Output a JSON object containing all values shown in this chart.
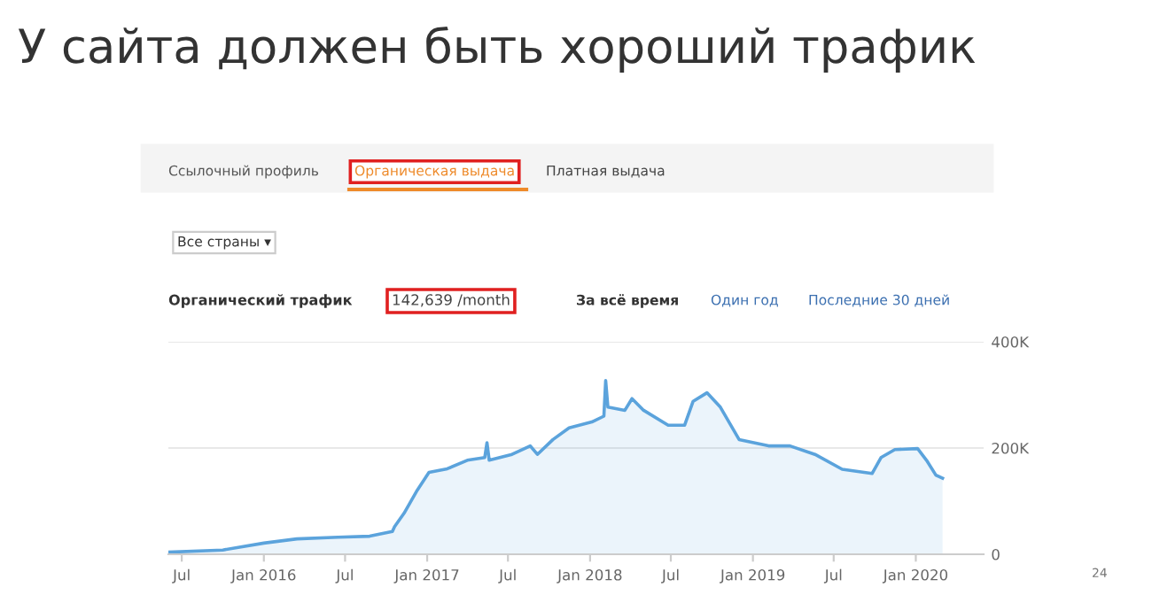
{
  "chart_data": {
    "type": "area",
    "title": "У сайта должен быть хороший трафик",
    "annotations": [
      "Ссылочный профиль",
      "Органическая выдача",
      "Платная выдача",
      "Все страны ▾",
      "Органический трафик",
      "142,639 /month",
      "За всё время",
      "Один год",
      "Последние 30 дней",
      "24"
    ],
    "x": [
      "2015-06-01",
      "2015-10-01",
      "2016-01-01",
      "2016-03-15",
      "2016-06-15",
      "2016-08-25",
      "2016-10-15",
      "2016-10-20",
      "2016-11-10",
      "2016-12-10",
      "2017-01-05",
      "2017-02-15",
      "2017-04-01",
      "2017-05-10",
      "2017-05-15",
      "2017-05-20",
      "2017-07-10",
      "2017-08-20",
      "2017-09-05",
      "2017-10-10",
      "2017-11-15",
      "2018-01-05",
      "2018-02-01",
      "2018-02-05",
      "2018-02-10",
      "2018-03-20",
      "2018-04-05",
      "2018-05-01",
      "2018-06-25",
      "2018-08-01",
      "2018-08-20",
      "2018-09-20",
      "2018-10-20",
      "2018-12-01",
      "2019-02-05",
      "2019-03-25",
      "2019-05-20",
      "2019-07-20",
      "2019-09-25",
      "2019-10-15",
      "2019-11-15",
      "2020-01-05",
      "2020-01-25",
      "2020-02-15",
      "2020-03-01"
    ],
    "series": [
      {
        "color": "#5ba3dc",
        "values": [
          4000,
          8000,
          21000,
          29000,
          32000,
          34000,
          43000,
          52000,
          77000,
          121000,
          154000,
          161000,
          177000,
          182000,
          210000,
          177000,
          188000,
          204000,
          188000,
          216000,
          238000,
          249000,
          260000,
          327000,
          277000,
          271000,
          293000,
          271000,
          243000,
          243000,
          288000,
          304000,
          277000,
          216000,
          204000,
          204000,
          188000,
          160000,
          152000,
          182000,
          197000,
          199000,
          177000,
          149000,
          143000
        ]
      }
    ],
    "xlim": [
      "2015-06-01",
      "2020-06-01"
    ],
    "xticks": [
      {
        "value": "2015-07-01",
        "label": "Jul"
      },
      {
        "value": "2016-01-01",
        "label": "Jan 2016"
      },
      {
        "value": "2016-07-01",
        "label": "Jul"
      },
      {
        "value": "2017-01-01",
        "label": "Jan 2017"
      },
      {
        "value": "2017-07-01",
        "label": "Jul"
      },
      {
        "value": "2018-01-01",
        "label": "Jan 2018"
      },
      {
        "value": "2018-07-01",
        "label": "Jul"
      },
      {
        "value": "2019-01-01",
        "label": "Jan 2019"
      },
      {
        "value": "2019-07-01",
        "label": "Jul"
      },
      {
        "value": "2020-01-01",
        "label": "Jan 2020"
      }
    ],
    "ylim": [
      0,
      400000
    ],
    "yticks": [
      {
        "value": 0,
        "label": "0"
      },
      {
        "value": 200000,
        "label": "200K"
      },
      {
        "value": 400000,
        "label": "400K"
      }
    ],
    "grid": "y",
    "legend": false
  }
}
